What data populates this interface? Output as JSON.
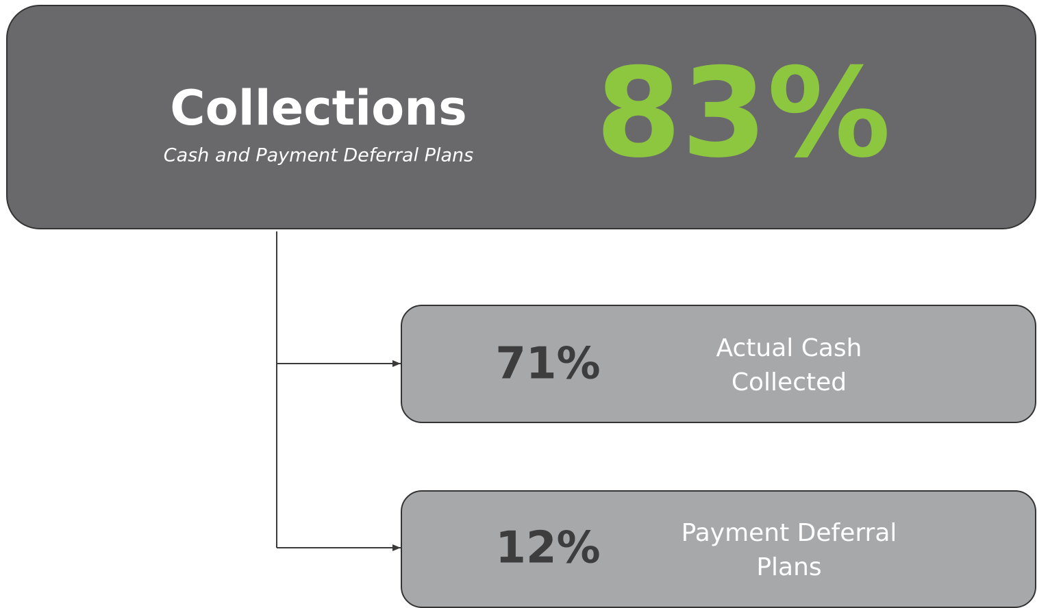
{
  "header": {
    "title": "Collections",
    "subtitle": "Cash and Payment Deferral Plans",
    "total": "83%"
  },
  "items": [
    {
      "value": "71%",
      "label_lines": [
        "Actual Cash",
        "Collected"
      ]
    },
    {
      "value": "12%",
      "label_lines": [
        "Payment Deferral",
        "Plans"
      ]
    }
  ]
}
